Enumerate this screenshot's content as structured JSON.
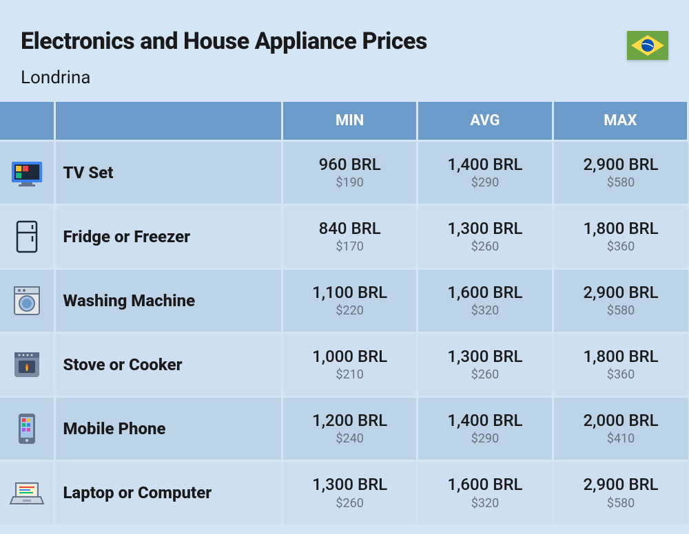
{
  "header": {
    "title": "Electronics and House Appliance Prices",
    "subtitle": "Londrina"
  },
  "columns": {
    "min": "MIN",
    "avg": "AVG",
    "max": "MAX"
  },
  "rows": [
    {
      "icon": "tv",
      "name": "TV Set",
      "min": {
        "v": "960 BRL",
        "usd": "$190"
      },
      "avg": {
        "v": "1,400 BRL",
        "usd": "$290"
      },
      "max": {
        "v": "2,900 BRL",
        "usd": "$580"
      }
    },
    {
      "icon": "fridge",
      "name": "Fridge or Freezer",
      "min": {
        "v": "840 BRL",
        "usd": "$170"
      },
      "avg": {
        "v": "1,300 BRL",
        "usd": "$260"
      },
      "max": {
        "v": "1,800 BRL",
        "usd": "$360"
      }
    },
    {
      "icon": "washer",
      "name": "Washing Machine",
      "min": {
        "v": "1,100 BRL",
        "usd": "$220"
      },
      "avg": {
        "v": "1,600 BRL",
        "usd": "$320"
      },
      "max": {
        "v": "2,900 BRL",
        "usd": "$580"
      }
    },
    {
      "icon": "stove",
      "name": "Stove or Cooker",
      "min": {
        "v": "1,000 BRL",
        "usd": "$210"
      },
      "avg": {
        "v": "1,300 BRL",
        "usd": "$260"
      },
      "max": {
        "v": "1,800 BRL",
        "usd": "$360"
      }
    },
    {
      "icon": "phone",
      "name": "Mobile Phone",
      "min": {
        "v": "1,200 BRL",
        "usd": "$240"
      },
      "avg": {
        "v": "1,400 BRL",
        "usd": "$290"
      },
      "max": {
        "v": "2,000 BRL",
        "usd": "$410"
      }
    },
    {
      "icon": "laptop",
      "name": "Laptop or Computer",
      "min": {
        "v": "1,300 BRL",
        "usd": "$260"
      },
      "avg": {
        "v": "1,600 BRL",
        "usd": "$320"
      },
      "max": {
        "v": "2,900 BRL",
        "usd": "$580"
      }
    }
  ],
  "style": {
    "bg": "#d4e5f5",
    "header_bg": "#6d9bc9",
    "row_odd": "#bcd3e8",
    "row_even": "#cddff0",
    "text": "#1a1a1a",
    "subtext": "#6b7280",
    "title_fontsize": 34,
    "name_fontsize": 24,
    "value_fontsize": 24,
    "sub_fontsize": 18
  }
}
